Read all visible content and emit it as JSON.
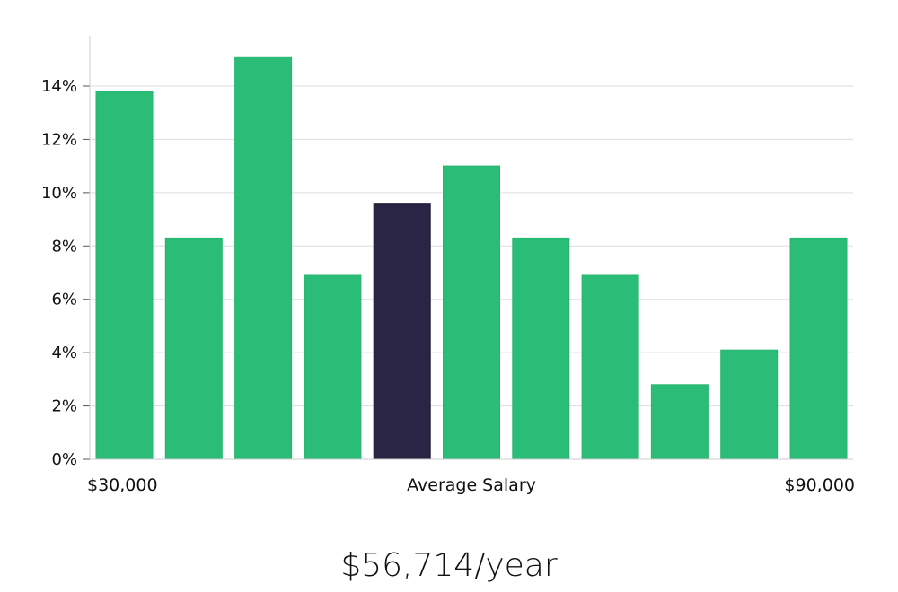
{
  "chart_data": {
    "type": "bar",
    "categories": [
      "1",
      "2",
      "3",
      "4",
      "5",
      "6",
      "7",
      "8",
      "9",
      "10",
      "11"
    ],
    "values": [
      13.8,
      8.3,
      15.1,
      6.9,
      9.6,
      11.0,
      8.3,
      6.9,
      2.8,
      4.1,
      8.3
    ],
    "highlight_index": 4,
    "ylim": [
      0,
      16
    ],
    "yticks": [
      0,
      2,
      4,
      6,
      8,
      10,
      12,
      14
    ],
    "ytick_suffix": "%",
    "grid": true,
    "x_min_label": "$30,000",
    "x_center_label": "Average Salary",
    "x_max_label": "$90,000",
    "colors": {
      "bar": "#2bbd77",
      "highlight": "#2a2545",
      "grid": "#dddddd",
      "axis": "#cccccc"
    }
  },
  "salary": {
    "value": "$56,714/year"
  }
}
